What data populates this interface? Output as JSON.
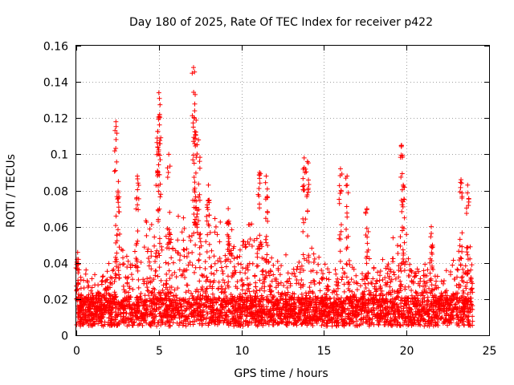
{
  "chart_data": {
    "type": "scatter",
    "title": "Day 180 of 2025, Rate Of TEC Index for receiver p422",
    "xlabel": "GPS time / hours",
    "ylabel": "ROTI / TECUs",
    "xlim": [
      0,
      25
    ],
    "ylim": [
      0,
      0.16
    ],
    "xticks": [
      0,
      5,
      10,
      15,
      20,
      25
    ],
    "yticks": [
      0,
      0.02,
      0.04,
      0.06,
      0.08,
      0.1,
      0.12,
      0.14,
      0.16
    ],
    "xtick_labels": [
      "0",
      "5",
      "10",
      "15",
      "20",
      "25"
    ],
    "ytick_labels": [
      "0",
      "0.02",
      "0.04",
      "0.06",
      "0.08",
      "0.1",
      "0.12",
      "0.14",
      "0.16"
    ],
    "grid": true,
    "marker": "plus",
    "color": "#ff0000",
    "data_range_x": [
      0,
      24
    ],
    "baseline_band": [
      0.005,
      0.025
    ],
    "peaks": [
      {
        "x": 0.05,
        "y": 0.042
      },
      {
        "x": 2.4,
        "y": 0.118
      },
      {
        "x": 2.55,
        "y": 0.085
      },
      {
        "x": 3.7,
        "y": 0.088
      },
      {
        "x": 4.9,
        "y": 0.109
      },
      {
        "x": 5.0,
        "y": 0.134
      },
      {
        "x": 5.05,
        "y": 0.121
      },
      {
        "x": 5.6,
        "y": 0.1
      },
      {
        "x": 7.1,
        "y": 0.148
      },
      {
        "x": 7.2,
        "y": 0.133
      },
      {
        "x": 7.15,
        "y": 0.12
      },
      {
        "x": 7.4,
        "y": 0.108
      },
      {
        "x": 8.0,
        "y": 0.083
      },
      {
        "x": 9.2,
        "y": 0.07
      },
      {
        "x": 11.1,
        "y": 0.09
      },
      {
        "x": 11.5,
        "y": 0.088
      },
      {
        "x": 13.8,
        "y": 0.098
      },
      {
        "x": 14.0,
        "y": 0.096
      },
      {
        "x": 16.0,
        "y": 0.092
      },
      {
        "x": 16.4,
        "y": 0.088
      },
      {
        "x": 17.6,
        "y": 0.07
      },
      {
        "x": 19.7,
        "y": 0.105
      },
      {
        "x": 19.8,
        "y": 0.083
      },
      {
        "x": 21.5,
        "y": 0.06
      },
      {
        "x": 23.3,
        "y": 0.086
      },
      {
        "x": 23.7,
        "y": 0.083
      }
    ]
  }
}
